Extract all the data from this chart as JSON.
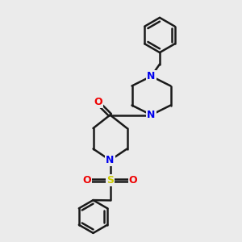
{
  "background_color": "#ebebeb",
  "line_color": "#1a1a1a",
  "bond_width": 1.8,
  "N_color": "#0000ee",
  "O_color": "#ee0000",
  "S_color": "#cccc00",
  "figsize": [
    3.0,
    3.0
  ],
  "dpi": 100,
  "xlim": [
    0,
    10
  ],
  "ylim": [
    0,
    10
  ]
}
